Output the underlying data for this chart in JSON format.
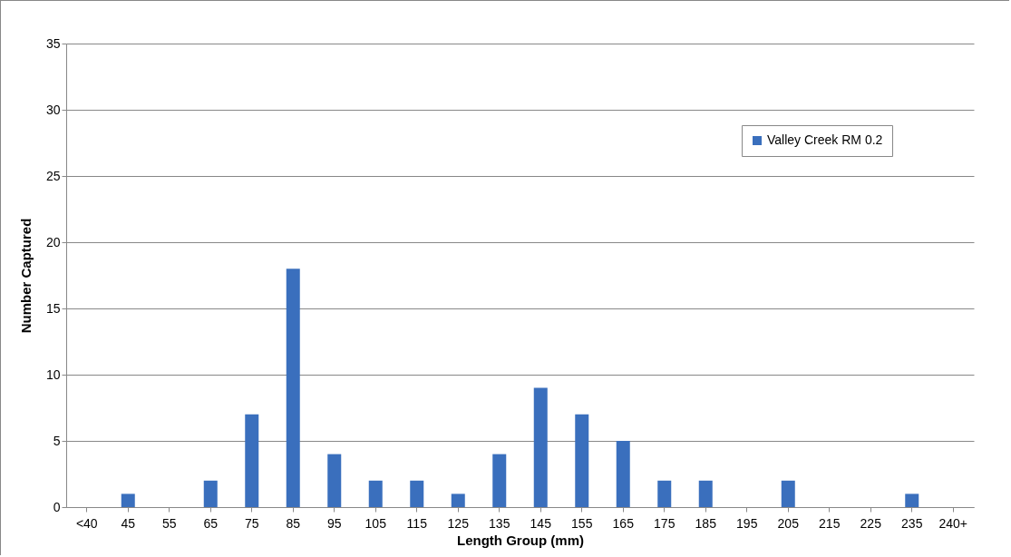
{
  "chart_data": {
    "type": "bar",
    "xlabel": "Length Group (mm)",
    "ylabel": "Number Captured",
    "categories": [
      "<40",
      "45",
      "55",
      "65",
      "75",
      "85",
      "95",
      "105",
      "115",
      "125",
      "135",
      "145",
      "155",
      "165",
      "175",
      "185",
      "195",
      "205",
      "215",
      "225",
      "235",
      "240+"
    ],
    "series": [
      {
        "name": "Valley Creek RM 0.2",
        "color": "#3a6fbd",
        "values": [
          0,
          1,
          0,
          2,
          7,
          18,
          4,
          2,
          2,
          1,
          4,
          9,
          7,
          5,
          2,
          2,
          0,
          2,
          0,
          0,
          1,
          0
        ]
      }
    ],
    "ylim": [
      0,
      35
    ],
    "yticks": [
      0,
      5,
      10,
      15,
      20,
      25,
      30,
      35
    ],
    "grid": "y",
    "legend": "top right"
  }
}
